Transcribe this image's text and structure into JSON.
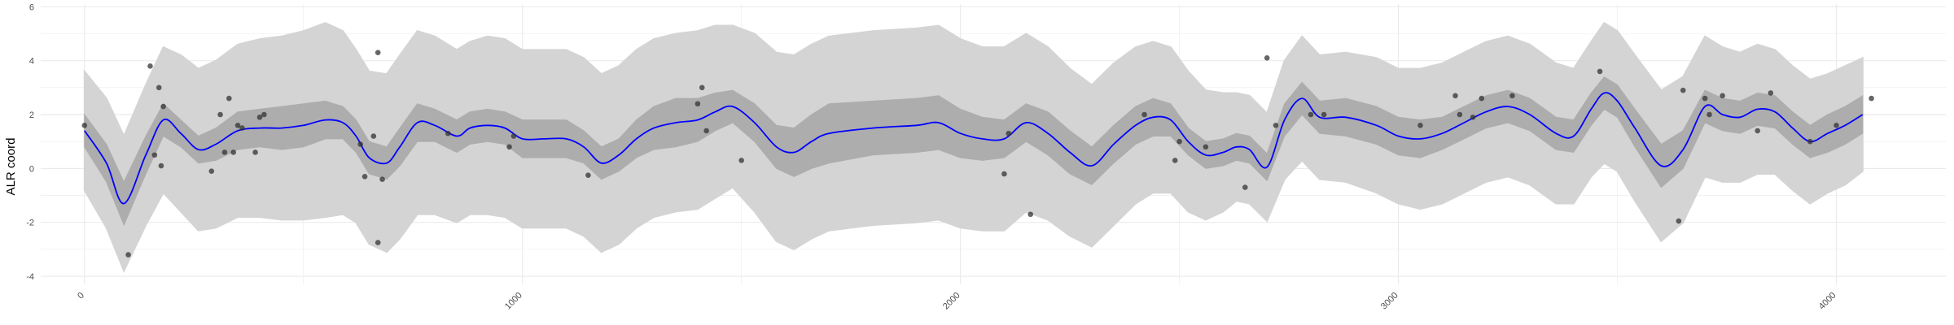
{
  "chart_data": {
    "type": "line",
    "title": "",
    "xlabel": "",
    "ylabel": "ALR coord",
    "xlim": [
      -100,
      4250
    ],
    "ylim": [
      -4.3,
      6.1
    ],
    "x_ticks": [
      0,
      1000,
      2000,
      3000,
      4000
    ],
    "y_ticks": [
      -4,
      -2,
      0,
      2,
      4,
      6
    ],
    "x_tick_labels": [
      "0",
      "1000",
      "2000",
      "3000",
      "4000"
    ],
    "y_tick_labels": [
      "-4",
      "-2",
      "0",
      "2",
      "4",
      "6"
    ],
    "grid": true,
    "legend": "none",
    "colors": {
      "mean_line": "#0000ff",
      "inner_band": "#adadad",
      "outer_band": "#d4d4d4",
      "points": "#333333",
      "grid": "#ebebeb"
    },
    "series": [
      {
        "type": "mean_line",
        "x": [
          0,
          50,
          90,
          140,
          180,
          220,
          260,
          300,
          350,
          400,
          450,
          500,
          550,
          590,
          620,
          650,
          690,
          720,
          760,
          800,
          850,
          880,
          920,
          960,
          1000,
          1050,
          1100,
          1140,
          1180,
          1220,
          1260,
          1300,
          1350,
          1400,
          1440,
          1480,
          1530,
          1580,
          1620,
          1660,
          1700,
          1800,
          1900,
          1950,
          2000,
          2050,
          2100,
          2150,
          2200,
          2250,
          2300,
          2350,
          2400,
          2440,
          2480,
          2520,
          2560,
          2600,
          2630,
          2660,
          2700,
          2740,
          2780,
          2820,
          2880,
          2950,
          3000,
          3050,
          3100,
          3150,
          3200,
          3250,
          3300,
          3360,
          3400,
          3440,
          3470,
          3500,
          3540,
          3600,
          3650,
          3700,
          3740,
          3780,
          3820,
          3860,
          3900,
          3940,
          3980,
          4020,
          4060
        ],
        "y": [
          1.4,
          0.2,
          -1.3,
          0.5,
          1.8,
          1.3,
          0.7,
          0.9,
          1.4,
          1.5,
          1.5,
          1.6,
          1.8,
          1.7,
          1.2,
          0.4,
          0.2,
          0.8,
          1.7,
          1.6,
          1.2,
          1.5,
          1.6,
          1.5,
          1.1,
          1.1,
          1.1,
          0.8,
          0.2,
          0.5,
          1.1,
          1.5,
          1.7,
          1.8,
          2.1,
          2.3,
          1.7,
          0.8,
          0.6,
          1.0,
          1.3,
          1.5,
          1.6,
          1.7,
          1.3,
          1.1,
          1.1,
          1.7,
          1.3,
          0.6,
          0.1,
          0.9,
          1.6,
          1.9,
          1.8,
          1.0,
          0.5,
          0.6,
          0.8,
          0.7,
          0.05,
          1.8,
          2.6,
          1.9,
          1.9,
          1.6,
          1.2,
          1.1,
          1.3,
          1.7,
          2.1,
          2.3,
          2.0,
          1.3,
          1.2,
          2.2,
          2.8,
          2.5,
          1.5,
          0.1,
          0.7,
          2.3,
          2.0,
          1.9,
          2.2,
          2.1,
          1.5,
          1.0,
          1.3,
          1.6,
          2.0
        ]
      },
      {
        "type": "inner_band",
        "half_width": [
          0.6,
          0.7,
          0.8,
          0.7,
          0.6,
          0.5,
          0.5,
          0.6,
          0.7,
          0.7,
          0.8,
          0.8,
          0.7,
          0.6,
          0.6,
          0.6,
          0.6,
          0.7,
          0.7,
          0.6,
          0.6,
          0.6,
          0.6,
          0.6,
          0.7,
          0.7,
          0.7,
          0.6,
          0.6,
          0.6,
          0.7,
          0.8,
          0.9,
          0.8,
          0.7,
          0.6,
          0.7,
          0.8,
          0.9,
          1.0,
          1.1,
          1.0,
          1.0,
          1.0,
          0.9,
          0.8,
          0.7,
          0.7,
          0.8,
          0.8,
          0.7,
          0.7,
          0.7,
          0.7,
          0.6,
          0.5,
          0.5,
          0.5,
          0.5,
          0.5,
          0.5,
          0.6,
          0.6,
          0.6,
          0.7,
          0.7,
          0.7,
          0.7,
          0.6,
          0.6,
          0.6,
          0.6,
          0.6,
          0.6,
          0.6,
          0.6,
          0.6,
          0.6,
          0.7,
          0.8,
          0.7,
          0.6,
          0.6,
          0.6,
          0.6,
          0.6,
          0.6,
          0.6,
          0.7,
          0.7,
          0.7
        ]
      },
      {
        "type": "outer_band",
        "half_width": [
          2.2,
          2.4,
          2.5,
          2.6,
          2.7,
          2.9,
          3.0,
          3.1,
          3.2,
          3.3,
          3.4,
          3.5,
          3.6,
          3.4,
          3.2,
          3.2,
          3.3,
          3.4,
          3.4,
          3.3,
          3.2,
          3.2,
          3.3,
          3.3,
          3.3,
          3.3,
          3.3,
          3.3,
          3.3,
          3.3,
          3.3,
          3.3,
          3.3,
          3.3,
          3.2,
          3.0,
          3.3,
          3.5,
          3.6,
          3.6,
          3.6,
          3.6,
          3.6,
          3.6,
          3.5,
          3.4,
          3.4,
          3.3,
          3.2,
          3.1,
          3.0,
          3.0,
          2.9,
          2.8,
          2.7,
          2.6,
          2.4,
          2.2,
          2.0,
          2.0,
          2.0,
          2.2,
          2.3,
          2.3,
          2.4,
          2.5,
          2.5,
          2.6,
          2.6,
          2.6,
          2.6,
          2.6,
          2.6,
          2.6,
          2.5,
          2.5,
          2.6,
          2.6,
          2.7,
          2.8,
          2.7,
          2.6,
          2.5,
          2.4,
          2.4,
          2.3,
          2.3,
          2.3,
          2.2,
          2.2,
          2.1
        ]
      },
      {
        "type": "points",
        "x": [
          0,
          100,
          150,
          160,
          170,
          175,
          180,
          290,
          310,
          320,
          330,
          340,
          350,
          360,
          390,
          400,
          410,
          630,
          640,
          660,
          670,
          680,
          830,
          970,
          980,
          1150,
          1400,
          1410,
          1420,
          1500,
          2100,
          2110,
          2160,
          2420,
          2490,
          2500,
          2560,
          2650,
          2700,
          2720,
          2800,
          2830,
          3050,
          3130,
          3140,
          3170,
          3190,
          3260,
          3460,
          3640,
          3650,
          3700,
          3710,
          3740,
          3820,
          3850,
          3940,
          4000,
          4080
        ],
        "y": [
          1.6,
          -3.2,
          3.8,
          0.5,
          3.0,
          0.1,
          2.3,
          -0.1,
          2.0,
          0.6,
          2.6,
          0.6,
          1.6,
          1.5,
          0.6,
          1.9,
          2.0,
          0.9,
          -0.3,
          1.2,
          4.3,
          -0.4,
          1.3,
          0.8,
          1.2,
          -0.25,
          2.4,
          3.0,
          1.4,
          0.3,
          -0.2,
          1.3,
          -1.7,
          2.0,
          0.3,
          1.0,
          0.8,
          -0.7,
          4.1,
          1.6,
          2.0,
          2.0,
          1.6,
          2.7,
          2.0,
          1.9,
          2.6,
          2.7,
          3.6,
          -1.95,
          2.9,
          2.6,
          2.0,
          2.7,
          1.4,
          2.8,
          1.0,
          1.6,
          2.6
        ]
      },
      {
        "type": "points",
        "x": [
          670
        ],
        "y": [
          -2.75
        ]
      }
    ]
  }
}
